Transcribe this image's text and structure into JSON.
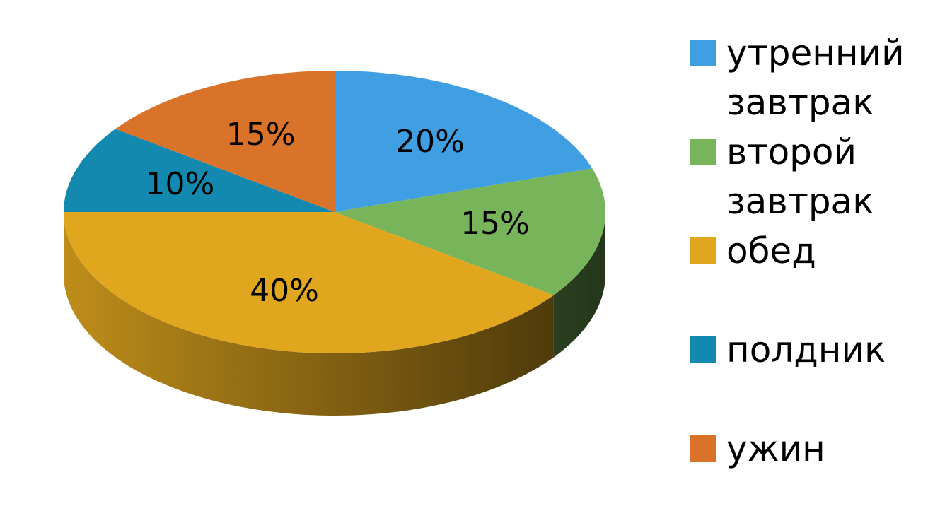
{
  "chart_data": {
    "type": "pie",
    "categories": [
      "утренний завтрак",
      "второй завтрак",
      "обед",
      "полдник",
      "ужин"
    ],
    "values": [
      20,
      15,
      40,
      10,
      15
    ],
    "value_labels": [
      "20%",
      "15%",
      "40%",
      "10%",
      "15%"
    ],
    "colors": [
      "#3f9fe2",
      "#78b45a",
      "#e0a61e",
      "#1489b0",
      "#d9732a"
    ],
    "legend": "right"
  }
}
